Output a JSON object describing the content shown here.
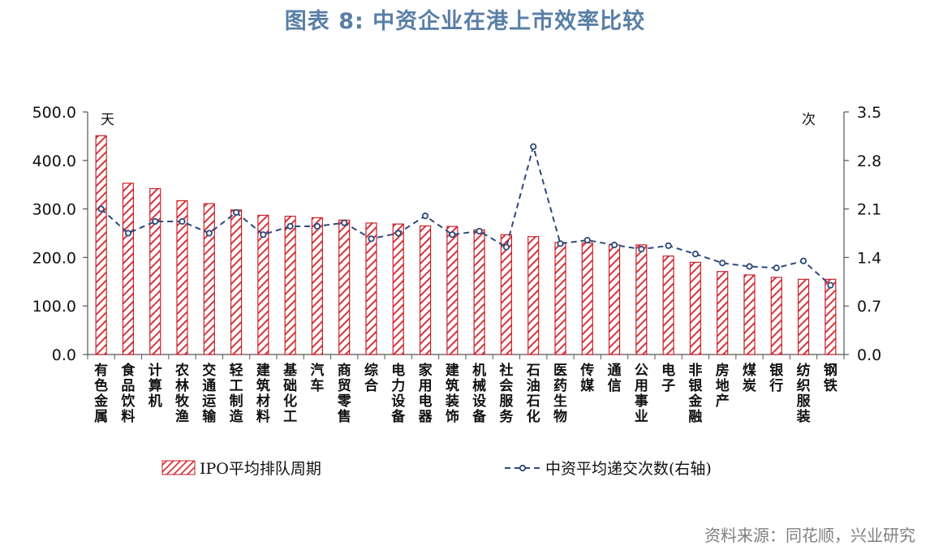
{
  "header": {
    "title": "图表 8:  中资企业在港上市效率比较"
  },
  "footer": {
    "source": "资料来源：同花顺，兴业研究"
  },
  "colors": {
    "bar_stroke": "#c8222a",
    "bar_hatch": "#d9343c",
    "line": "#2e4a7a",
    "title": "#5a7fa6"
  },
  "chart_data": {
    "type": "bar",
    "categories": [
      "有色金属",
      "食品饮料",
      "计算机",
      "农林牧渔",
      "交通运输",
      "轻工制造",
      "建筑材料",
      "基础化工",
      "汽车",
      "商贸零售",
      "综合",
      "电力设备",
      "家用电器",
      "建筑装饰",
      "机械设备",
      "社会服务",
      "石油石化",
      "医药生物",
      "传媒",
      "通信",
      "公用事业",
      "电子",
      "非银金融",
      "房地产",
      "煤炭",
      "银行",
      "纺织服装",
      "钢铁"
    ],
    "series": [
      {
        "name": "IPO平均排队周期",
        "type": "bar",
        "axis": "left",
        "values": [
          451,
          353,
          342,
          317,
          311,
          298,
          287,
          285,
          282,
          277,
          271,
          269,
          265,
          264,
          257,
          247,
          243,
          231,
          230,
          226,
          226,
          203,
          190,
          171,
          164,
          159,
          155,
          155
        ]
      },
      {
        "name": "中资平均递交次数(右轴)",
        "type": "line",
        "axis": "right",
        "values": [
          2.1,
          1.75,
          1.92,
          1.92,
          1.75,
          2.05,
          1.73,
          1.85,
          1.85,
          1.9,
          1.67,
          1.75,
          2.0,
          1.73,
          1.78,
          1.55,
          3.0,
          1.6,
          1.65,
          1.58,
          1.52,
          1.57,
          1.45,
          1.32,
          1.27,
          1.25,
          1.35,
          1.0
        ]
      }
    ],
    "y_left": {
      "unit": "天",
      "ylim": [
        0,
        500
      ],
      "ticks": [
        "0.0",
        "100.0",
        "200.0",
        "300.0",
        "400.0",
        "500.0"
      ]
    },
    "y_right": {
      "unit": "次",
      "ylim": [
        0,
        3.5
      ],
      "ticks": [
        "0.0",
        "0.7",
        "1.4",
        "2.1",
        "2.8",
        "3.5"
      ]
    },
    "legend": {
      "placement": "bottom",
      "items": [
        "IPO平均排队周期",
        "中资平均递交次数(右轴)"
      ]
    },
    "grid": false
  }
}
